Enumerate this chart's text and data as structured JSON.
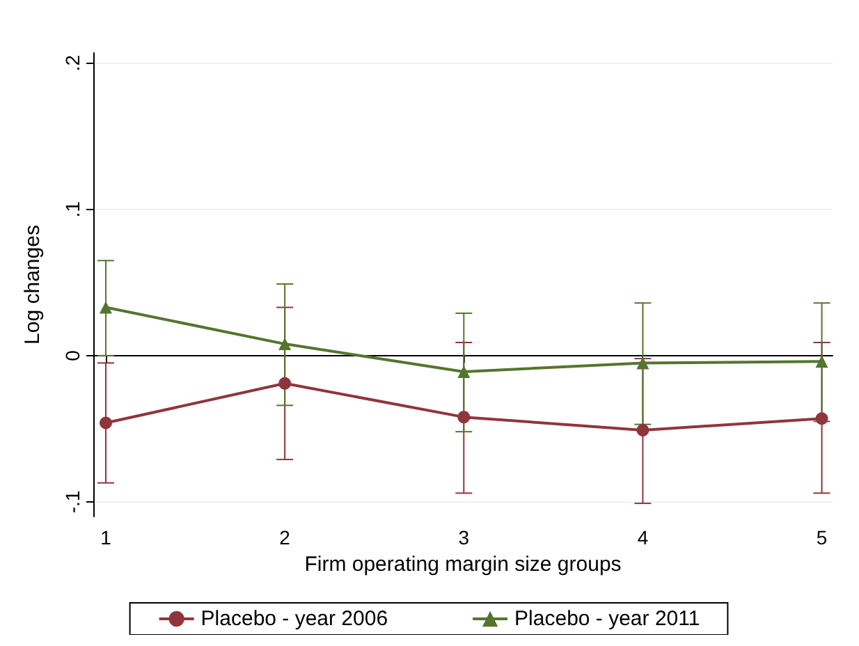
{
  "chart_data": {
    "type": "line",
    "xlabel": "Firm operating margin size groups",
    "ylabel": "Log changes",
    "x": [
      1,
      2,
      3,
      4,
      5
    ],
    "series": [
      {
        "name": "Placebo - year 2006",
        "color": "#90353b",
        "marker": "circle",
        "values": [
          -0.046,
          -0.019,
          -0.042,
          -0.051,
          -0.043
        ],
        "errors": [
          [
            -0.087,
            -0.005
          ],
          [
            -0.071,
            0.033
          ],
          [
            -0.094,
            0.009
          ],
          [
            -0.101,
            -0.002
          ],
          [
            -0.094,
            0.009
          ]
        ]
      },
      {
        "name": "Placebo - year 2011",
        "color": "#55752f",
        "marker": "triangle",
        "values": [
          0.033,
          0.008,
          -0.011,
          -0.005,
          -0.004
        ],
        "errors": [
          [
            0.0,
            0.065
          ],
          [
            -0.034,
            0.049
          ],
          [
            -0.052,
            0.029
          ],
          [
            -0.047,
            0.036
          ],
          [
            -0.045,
            0.036
          ]
        ]
      }
    ],
    "xlim": [
      0.93,
      5.06
    ],
    "xticks": [
      1,
      2,
      3,
      4,
      5
    ],
    "ylim": [
      -0.11,
      0.207
    ],
    "yticks": [
      {
        "value": -0.1,
        "label": "-.1"
      },
      {
        "value": 0,
        "label": "0"
      },
      {
        "value": 0.1,
        "label": ".1"
      },
      {
        "value": 0.2,
        "label": ".2"
      }
    ],
    "grid": "y",
    "legend": "bottom"
  }
}
